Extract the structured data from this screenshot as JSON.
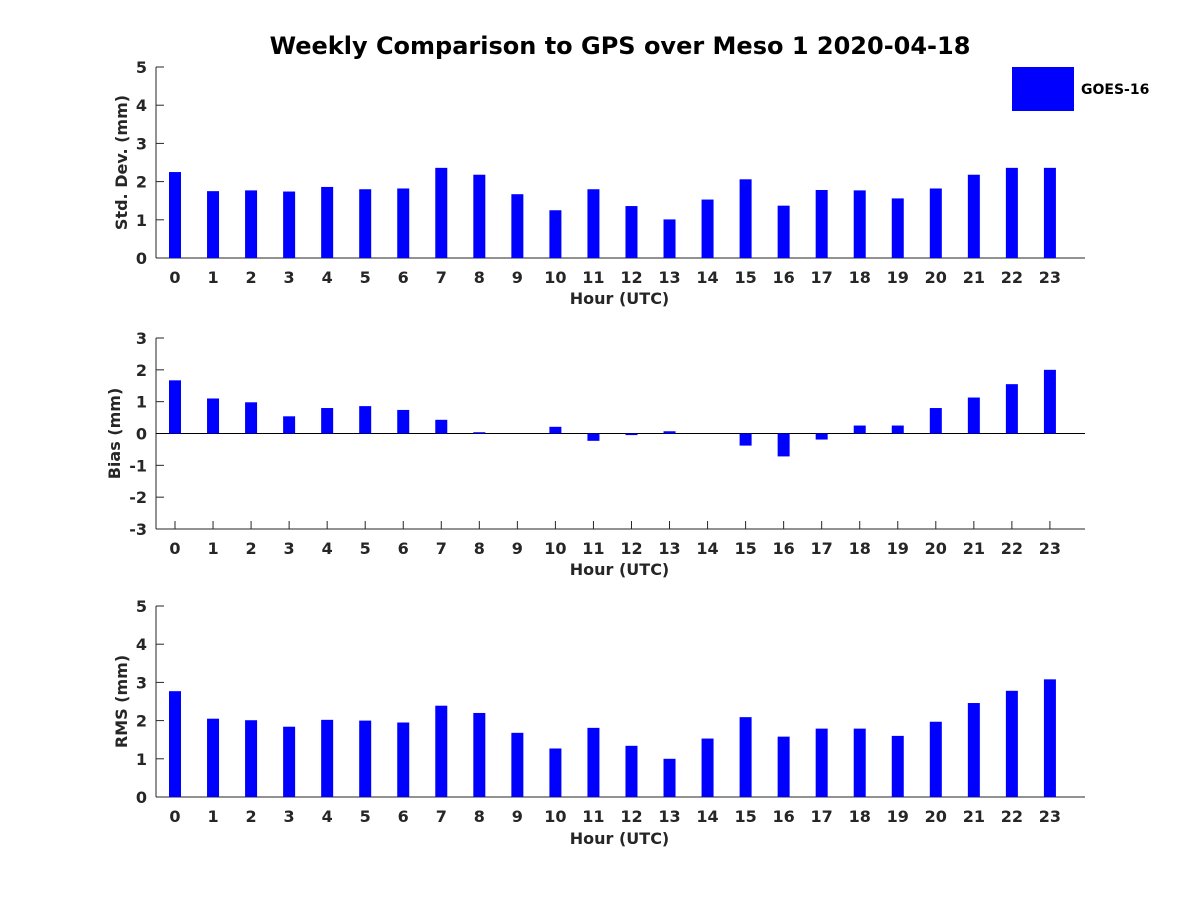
{
  "figure_title": "Weekly Comparison to GPS over Meso 1 2020-04-18",
  "legend": {
    "label": "GOES-16",
    "color": "#0000ff"
  },
  "chart_data": [
    {
      "type": "bar",
      "title": "Weekly Comparison to GPS over Meso 1 2020-04-18",
      "xlabel": "Hour (UTC)",
      "ylabel": "Std. Dev. (mm)",
      "ylim": [
        0,
        5
      ],
      "yticks": [
        "0",
        "1",
        "2",
        "3",
        "4",
        "5"
      ],
      "categories": [
        "0",
        "1",
        "2",
        "3",
        "4",
        "5",
        "6",
        "7",
        "8",
        "9",
        "10",
        "11",
        "12",
        "13",
        "14",
        "15",
        "16",
        "17",
        "18",
        "19",
        "20",
        "21",
        "22",
        "23"
      ],
      "series": [
        {
          "name": "GOES-16",
          "color": "#0000ff",
          "values": [
            2.25,
            1.75,
            1.77,
            1.74,
            1.86,
            1.8,
            1.82,
            2.36,
            2.18,
            1.67,
            1.25,
            1.8,
            1.36,
            1.01,
            1.53,
            2.06,
            1.37,
            1.78,
            1.77,
            1.56,
            1.82,
            2.18,
            2.36,
            2.36
          ]
        }
      ]
    },
    {
      "type": "bar",
      "title": "",
      "xlabel": "Hour (UTC)",
      "ylabel": "Bias (mm)",
      "ylim": [
        -3,
        3
      ],
      "yticks": [
        "-3",
        "-2",
        "-1",
        "0",
        "1",
        "2",
        "3"
      ],
      "categories": [
        "0",
        "1",
        "2",
        "3",
        "4",
        "5",
        "6",
        "7",
        "8",
        "9",
        "10",
        "11",
        "12",
        "13",
        "14",
        "15",
        "16",
        "17",
        "18",
        "19",
        "20",
        "21",
        "22",
        "23"
      ],
      "series": [
        {
          "name": "GOES-16",
          "color": "#0000ff",
          "values": [
            1.67,
            1.1,
            0.98,
            0.54,
            0.8,
            0.86,
            0.74,
            0.43,
            0.04,
            0.0,
            0.21,
            -0.23,
            -0.05,
            0.07,
            0.0,
            -0.38,
            -0.72,
            -0.19,
            0.25,
            0.25,
            0.8,
            1.13,
            1.55,
            2.0
          ]
        }
      ]
    },
    {
      "type": "bar",
      "title": "",
      "xlabel": "Hour (UTC)",
      "ylabel": "RMS (mm)",
      "ylim": [
        0,
        5
      ],
      "yticks": [
        "0",
        "1",
        "2",
        "3",
        "4",
        "5"
      ],
      "categories": [
        "0",
        "1",
        "2",
        "3",
        "4",
        "5",
        "6",
        "7",
        "8",
        "9",
        "10",
        "11",
        "12",
        "13",
        "14",
        "15",
        "16",
        "17",
        "18",
        "19",
        "20",
        "21",
        "22",
        "23"
      ],
      "series": [
        {
          "name": "GOES-16",
          "color": "#0000ff",
          "values": [
            2.77,
            2.05,
            2.01,
            1.84,
            2.02,
            2.0,
            1.95,
            2.39,
            2.2,
            1.68,
            1.27,
            1.81,
            1.34,
            1.0,
            1.53,
            2.09,
            1.58,
            1.79,
            1.79,
            1.6,
            1.97,
            2.46,
            2.78,
            3.08
          ]
        }
      ]
    }
  ]
}
